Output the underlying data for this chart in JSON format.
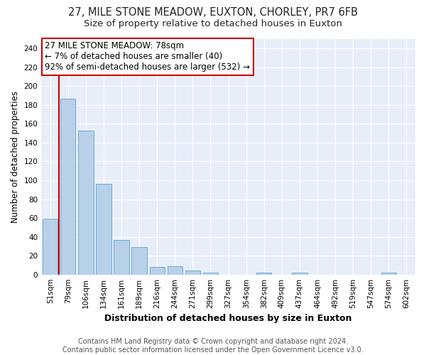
{
  "title1": "27, MILE STONE MEADOW, EUXTON, CHORLEY, PR7 6FB",
  "title2": "Size of property relative to detached houses in Euxton",
  "xlabel": "Distribution of detached houses by size in Euxton",
  "ylabel": "Number of detached properties",
  "categories": [
    "51sqm",
    "79sqm",
    "106sqm",
    "134sqm",
    "161sqm",
    "189sqm",
    "216sqm",
    "244sqm",
    "271sqm",
    "299sqm",
    "327sqm",
    "354sqm",
    "382sqm",
    "409sqm",
    "437sqm",
    "464sqm",
    "492sqm",
    "519sqm",
    "547sqm",
    "574sqm",
    "602sqm"
  ],
  "values": [
    59,
    187,
    153,
    96,
    37,
    29,
    8,
    9,
    4,
    2,
    0,
    0,
    2,
    0,
    2,
    0,
    0,
    0,
    0,
    2,
    0
  ],
  "bar_color": "#b8d0e8",
  "bar_edge_color": "#6aaad4",
  "vline_x": 0.5,
  "vline_color": "#cc0000",
  "annotation_line1": "27 MILE STONE MEADOW: 78sqm",
  "annotation_line2": "← 7% of detached houses are smaller (40)",
  "annotation_line3": "92% of semi-detached houses are larger (532) →",
  "annotation_box_color": "#ffffff",
  "annotation_box_edge_color": "#cc0000",
  "ylim": [
    0,
    250
  ],
  "yticks": [
    0,
    20,
    40,
    60,
    80,
    100,
    120,
    140,
    160,
    180,
    200,
    220,
    240
  ],
  "plot_bg_color": "#e8eef8",
  "fig_bg_color": "#ffffff",
  "grid_color": "#ffffff",
  "footer_text": "Contains HM Land Registry data © Crown copyright and database right 2024.\nContains public sector information licensed under the Open Government Licence v3.0.",
  "title1_fontsize": 10.5,
  "title2_fontsize": 9.5,
  "xlabel_fontsize": 9,
  "ylabel_fontsize": 8.5,
  "tick_fontsize": 7.5,
  "annotation_fontsize": 8.5,
  "footer_fontsize": 7
}
